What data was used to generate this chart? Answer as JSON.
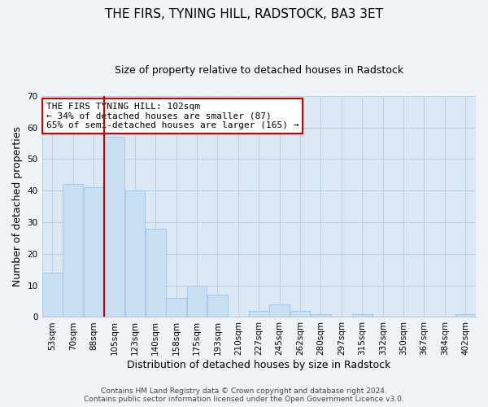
{
  "title": "THE FIRS, TYNING HILL, RADSTOCK, BA3 3ET",
  "subtitle": "Size of property relative to detached houses in Radstock",
  "xlabel": "Distribution of detached houses by size in Radstock",
  "ylabel": "Number of detached properties",
  "bar_color": "#c9dff2",
  "bar_edge_color": "#a8c8e8",
  "plot_bg_color": "#dce9f5",
  "fig_bg_color": "#f0f4f8",
  "categories": [
    "53sqm",
    "70sqm",
    "88sqm",
    "105sqm",
    "123sqm",
    "140sqm",
    "158sqm",
    "175sqm",
    "193sqm",
    "210sqm",
    "227sqm",
    "245sqm",
    "262sqm",
    "280sqm",
    "297sqm",
    "315sqm",
    "332sqm",
    "350sqm",
    "367sqm",
    "384sqm",
    "402sqm"
  ],
  "values": [
    14,
    42,
    41,
    57,
    40,
    28,
    6,
    10,
    7,
    0,
    2,
    4,
    2,
    1,
    0,
    1,
    0,
    0,
    0,
    0,
    1
  ],
  "vline_color": "#cc0000",
  "vline_x_index": 3,
  "annotation_title": "THE FIRS TYNING HILL: 102sqm",
  "annotation_line1": "← 34% of detached houses are smaller (87)",
  "annotation_line2": "65% of semi-detached houses are larger (165) →",
  "annotation_box_color": "#ffffff",
  "annotation_box_edge": "#cc0000",
  "ylim": [
    0,
    70
  ],
  "yticks": [
    0,
    10,
    20,
    30,
    40,
    50,
    60,
    70
  ],
  "footer_line1": "Contains HM Land Registry data © Crown copyright and database right 2024.",
  "footer_line2": "Contains public sector information licensed under the Open Government Licence v3.0.",
  "grid_color": "#b8cfe0",
  "title_fontsize": 11,
  "subtitle_fontsize": 9,
  "xlabel_fontsize": 9,
  "ylabel_fontsize": 9,
  "tick_fontsize": 7.5,
  "footer_fontsize": 6.5,
  "annotation_fontsize": 8
}
